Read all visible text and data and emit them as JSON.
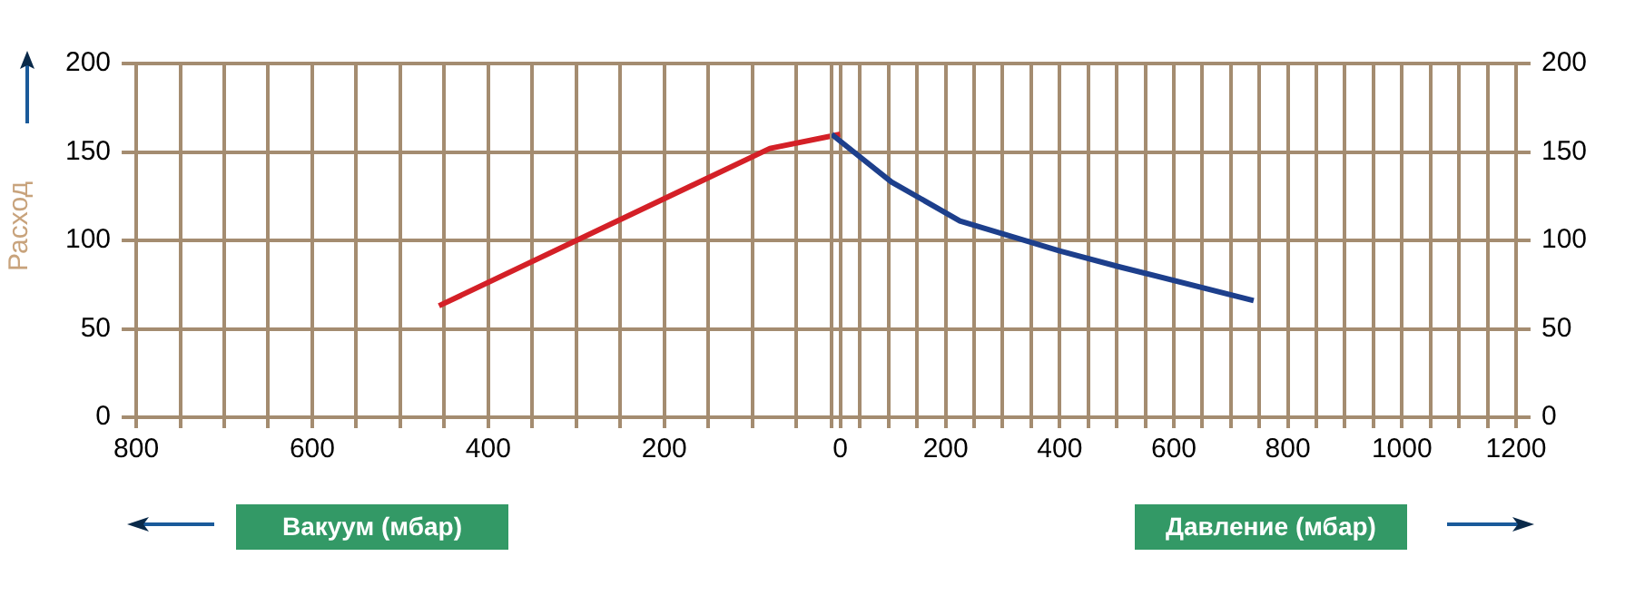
{
  "chart_data": [
    {
      "type": "line",
      "xlabel": "Вакуум (мбар)",
      "ylabel": "Расход",
      "xlim": [
        800,
        0
      ],
      "xticks": [
        800,
        {
          "value": 750,
          "label": null
        },
        600,
        {
          "value": 700,
          "label": null
        },
        {
          "value": 650,
          "label": null
        },
        {
          "value": 550,
          "label": null
        },
        {
          "value": 500,
          "label": null
        },
        {
          "value": 450,
          "label": null
        },
        400,
        {
          "value": 350,
          "label": null
        },
        {
          "value": 300,
          "label": null
        },
        {
          "value": 250,
          "label": null
        },
        200,
        {
          "value": 150,
          "label": null
        },
        {
          "value": 100,
          "label": null
        },
        {
          "value": 50,
          "label": null
        },
        0
      ],
      "ylim": [
        0,
        200
      ],
      "yticks": [
        0,
        50,
        100,
        150,
        200
      ],
      "grid": true,
      "legend": false,
      "series": [
        {
          "color": "#d42027",
          "x": [
            456,
            80,
            0
          ],
          "values": [
            63,
            152,
            160
          ]
        }
      ]
    },
    {
      "type": "line",
      "xlabel": "Давление (мбар)",
      "xlim": [
        0,
        1200
      ],
      "xticks": [
        {
          "value": 0,
          "label": null
        },
        {
          "value": 50,
          "label": null
        },
        {
          "value": 100,
          "label": null
        },
        {
          "value": 150,
          "label": null
        },
        200,
        {
          "value": 250,
          "label": null
        },
        {
          "value": 300,
          "label": null
        },
        {
          "value": 350,
          "label": null
        },
        400,
        {
          "value": 450,
          "label": null
        },
        {
          "value": 500,
          "label": null
        },
        {
          "value": 550,
          "label": null
        },
        600,
        {
          "value": 650,
          "label": null
        },
        {
          "value": 700,
          "label": null
        },
        {
          "value": 750,
          "label": null
        },
        800,
        {
          "value": 850,
          "label": null
        },
        {
          "value": 900,
          "label": null
        },
        {
          "value": 950,
          "label": null
        },
        1000,
        {
          "value": 1050,
          "label": null
        },
        {
          "value": 1100,
          "label": null
        },
        {
          "value": 1150,
          "label": null
        },
        1200
      ],
      "y2lim": [
        0,
        200
      ],
      "y2ticks": [
        0,
        50,
        100,
        150,
        200
      ],
      "grid": true,
      "legend": false,
      "series": [
        {
          "color": "#1d3f8c",
          "axis": "y2",
          "x": [
            0,
            105,
            225,
            400,
            505,
            740
          ],
          "values": [
            160,
            133,
            111,
            94,
            85,
            66
          ]
        }
      ]
    }
  ]
}
